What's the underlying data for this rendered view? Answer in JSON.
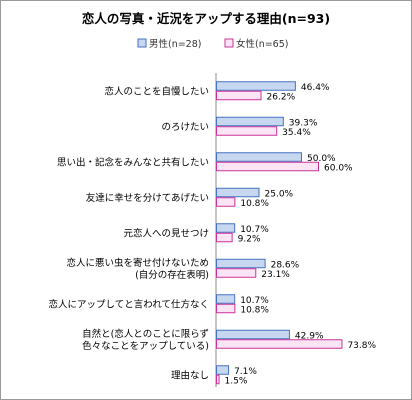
{
  "chart_data": {
    "type": "bar",
    "orientation": "horizontal",
    "title": "恋人の写真・近況をアップする理由(n=93)",
    "legend_position": "top-right",
    "grid": false,
    "xlim": [
      0,
      80
    ],
    "categories": [
      [
        "恋人のことを自慢したい"
      ],
      [
        "のろけたい"
      ],
      [
        "思い出・記念をみんなと共有したい"
      ],
      [
        "友達に幸せを分けてあげたい"
      ],
      [
        "元恋人への見せつけ"
      ],
      [
        "恋人に悪い虫を寄せ付けないため",
        "(自分の存在表明)"
      ],
      [
        "恋人にアップしてと言われて仕方なく"
      ],
      [
        "自然と(恋人とのことに限らず",
        "色々なことをアップしている)"
      ],
      [
        "理由なし"
      ]
    ],
    "series": [
      {
        "name": "男性(n=28)",
        "color": "#4472c4",
        "fill": "#c7d7ef",
        "values": [
          46.4,
          39.3,
          50.0,
          25.0,
          10.7,
          28.6,
          10.7,
          42.9,
          7.1
        ],
        "labels": [
          "46.4%",
          "39.3%",
          "50.0%",
          "25.0%",
          "10.7%",
          "28.6%",
          "10.7%",
          "42.9%",
          "7.1%"
        ]
      },
      {
        "name": "女性(n=65)",
        "color": "#cc3399",
        "fill": "#fbe4f4",
        "values": [
          26.2,
          35.4,
          60.0,
          10.8,
          9.2,
          23.1,
          10.8,
          73.8,
          1.5
        ],
        "labels": [
          "26.2%",
          "35.4%",
          "60.0%",
          "10.8%",
          "9.2%",
          "23.1%",
          "10.8%",
          "73.8%",
          "1.5%"
        ]
      }
    ]
  }
}
